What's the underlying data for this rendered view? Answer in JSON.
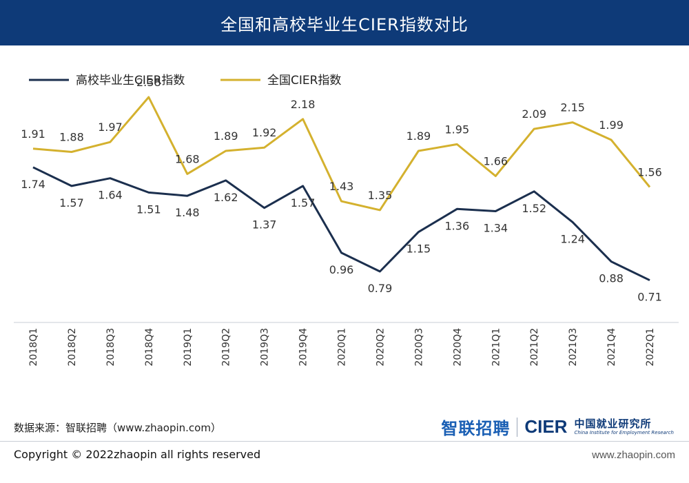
{
  "header": {
    "title": "全国和高校毕业生CIER指数对比"
  },
  "chart_data": {
    "type": "line",
    "title": "全国和高校毕业生CIER指数对比",
    "categories": [
      "2018Q1",
      "2018Q2",
      "2018Q3",
      "2018Q4",
      "2019Q1",
      "2019Q2",
      "2019Q3",
      "2019Q4",
      "2020Q1",
      "2020Q2",
      "2020Q3",
      "2020Q4",
      "2021Q1",
      "2021Q2",
      "2021Q3",
      "2021Q4",
      "2022Q1"
    ],
    "series": [
      {
        "name": "高校毕业生CIER指数",
        "color": "#1b2f4e",
        "values": [
          1.74,
          1.57,
          1.64,
          1.51,
          1.48,
          1.62,
          1.37,
          1.57,
          0.96,
          0.79,
          1.15,
          1.36,
          1.34,
          1.52,
          1.24,
          0.88,
          0.71
        ]
      },
      {
        "name": "全国CIER指数",
        "color": "#d4b12e",
        "values": [
          1.91,
          1.88,
          1.97,
          2.38,
          1.68,
          1.89,
          1.92,
          2.18,
          1.43,
          1.35,
          1.89,
          1.95,
          1.66,
          2.09,
          2.15,
          1.99,
          1.56
        ]
      }
    ],
    "series_labels": [
      [
        "1.74",
        "1.57",
        "1.64",
        "1.51",
        "1.48",
        "1.62",
        "1.37",
        "1.57",
        "0.96",
        "0.79",
        "1.15",
        "1.36",
        "1.34",
        "1.52",
        "1.24",
        "0.88",
        "0.71"
      ],
      [
        "1.91",
        "1.88",
        "1.97",
        "2.38",
        "1.68",
        "1.89",
        "1.92",
        "2.18",
        "1.43",
        "1.35",
        "1.89",
        "1.95",
        "1.66",
        "2.09",
        "2.15",
        "1.99",
        "1.56"
      ]
    ],
    "ylim": [
      0.4,
      2.6
    ],
    "grid": false,
    "legend": "top-left"
  },
  "footer": {
    "source": "数据来源：智联招聘（www.zhaopin.com）",
    "logo_zhilian": "智联招聘",
    "logo_cier": "CIER",
    "logo_cier_cn": "中国就业研究所",
    "logo_cier_en": "China Institute for Employment Research",
    "copyright": "Copyright ©  2022zhaopin all rights reserved",
    "website": "www.zhaopin.com"
  }
}
